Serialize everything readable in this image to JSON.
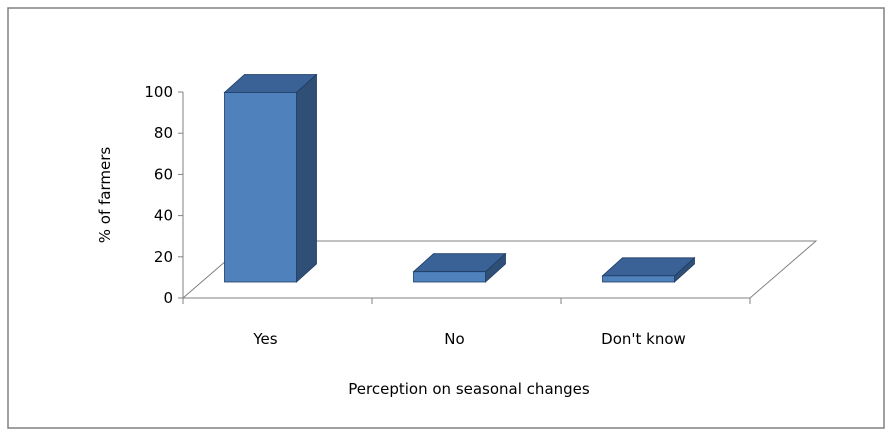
{
  "chart_data": {
    "type": "bar",
    "style": "3d-column",
    "categories": [
      "Yes",
      "No",
      "Don't know"
    ],
    "values": [
      92,
      5,
      3
    ],
    "title": "",
    "xlabel": "Perception on seasonal changes",
    "ylabel": "% of farmers",
    "ylim": [
      0,
      100
    ],
    "yticks": [
      0,
      20,
      40,
      60,
      80,
      100
    ],
    "grid": false,
    "legend": "none",
    "colors": {
      "bar_front": "#4F81BD",
      "bar_side": "#2F4F77",
      "bar_top": "#3A6296",
      "outline": "#1F3D63",
      "axis": "#808080",
      "frame": "#808080"
    }
  }
}
